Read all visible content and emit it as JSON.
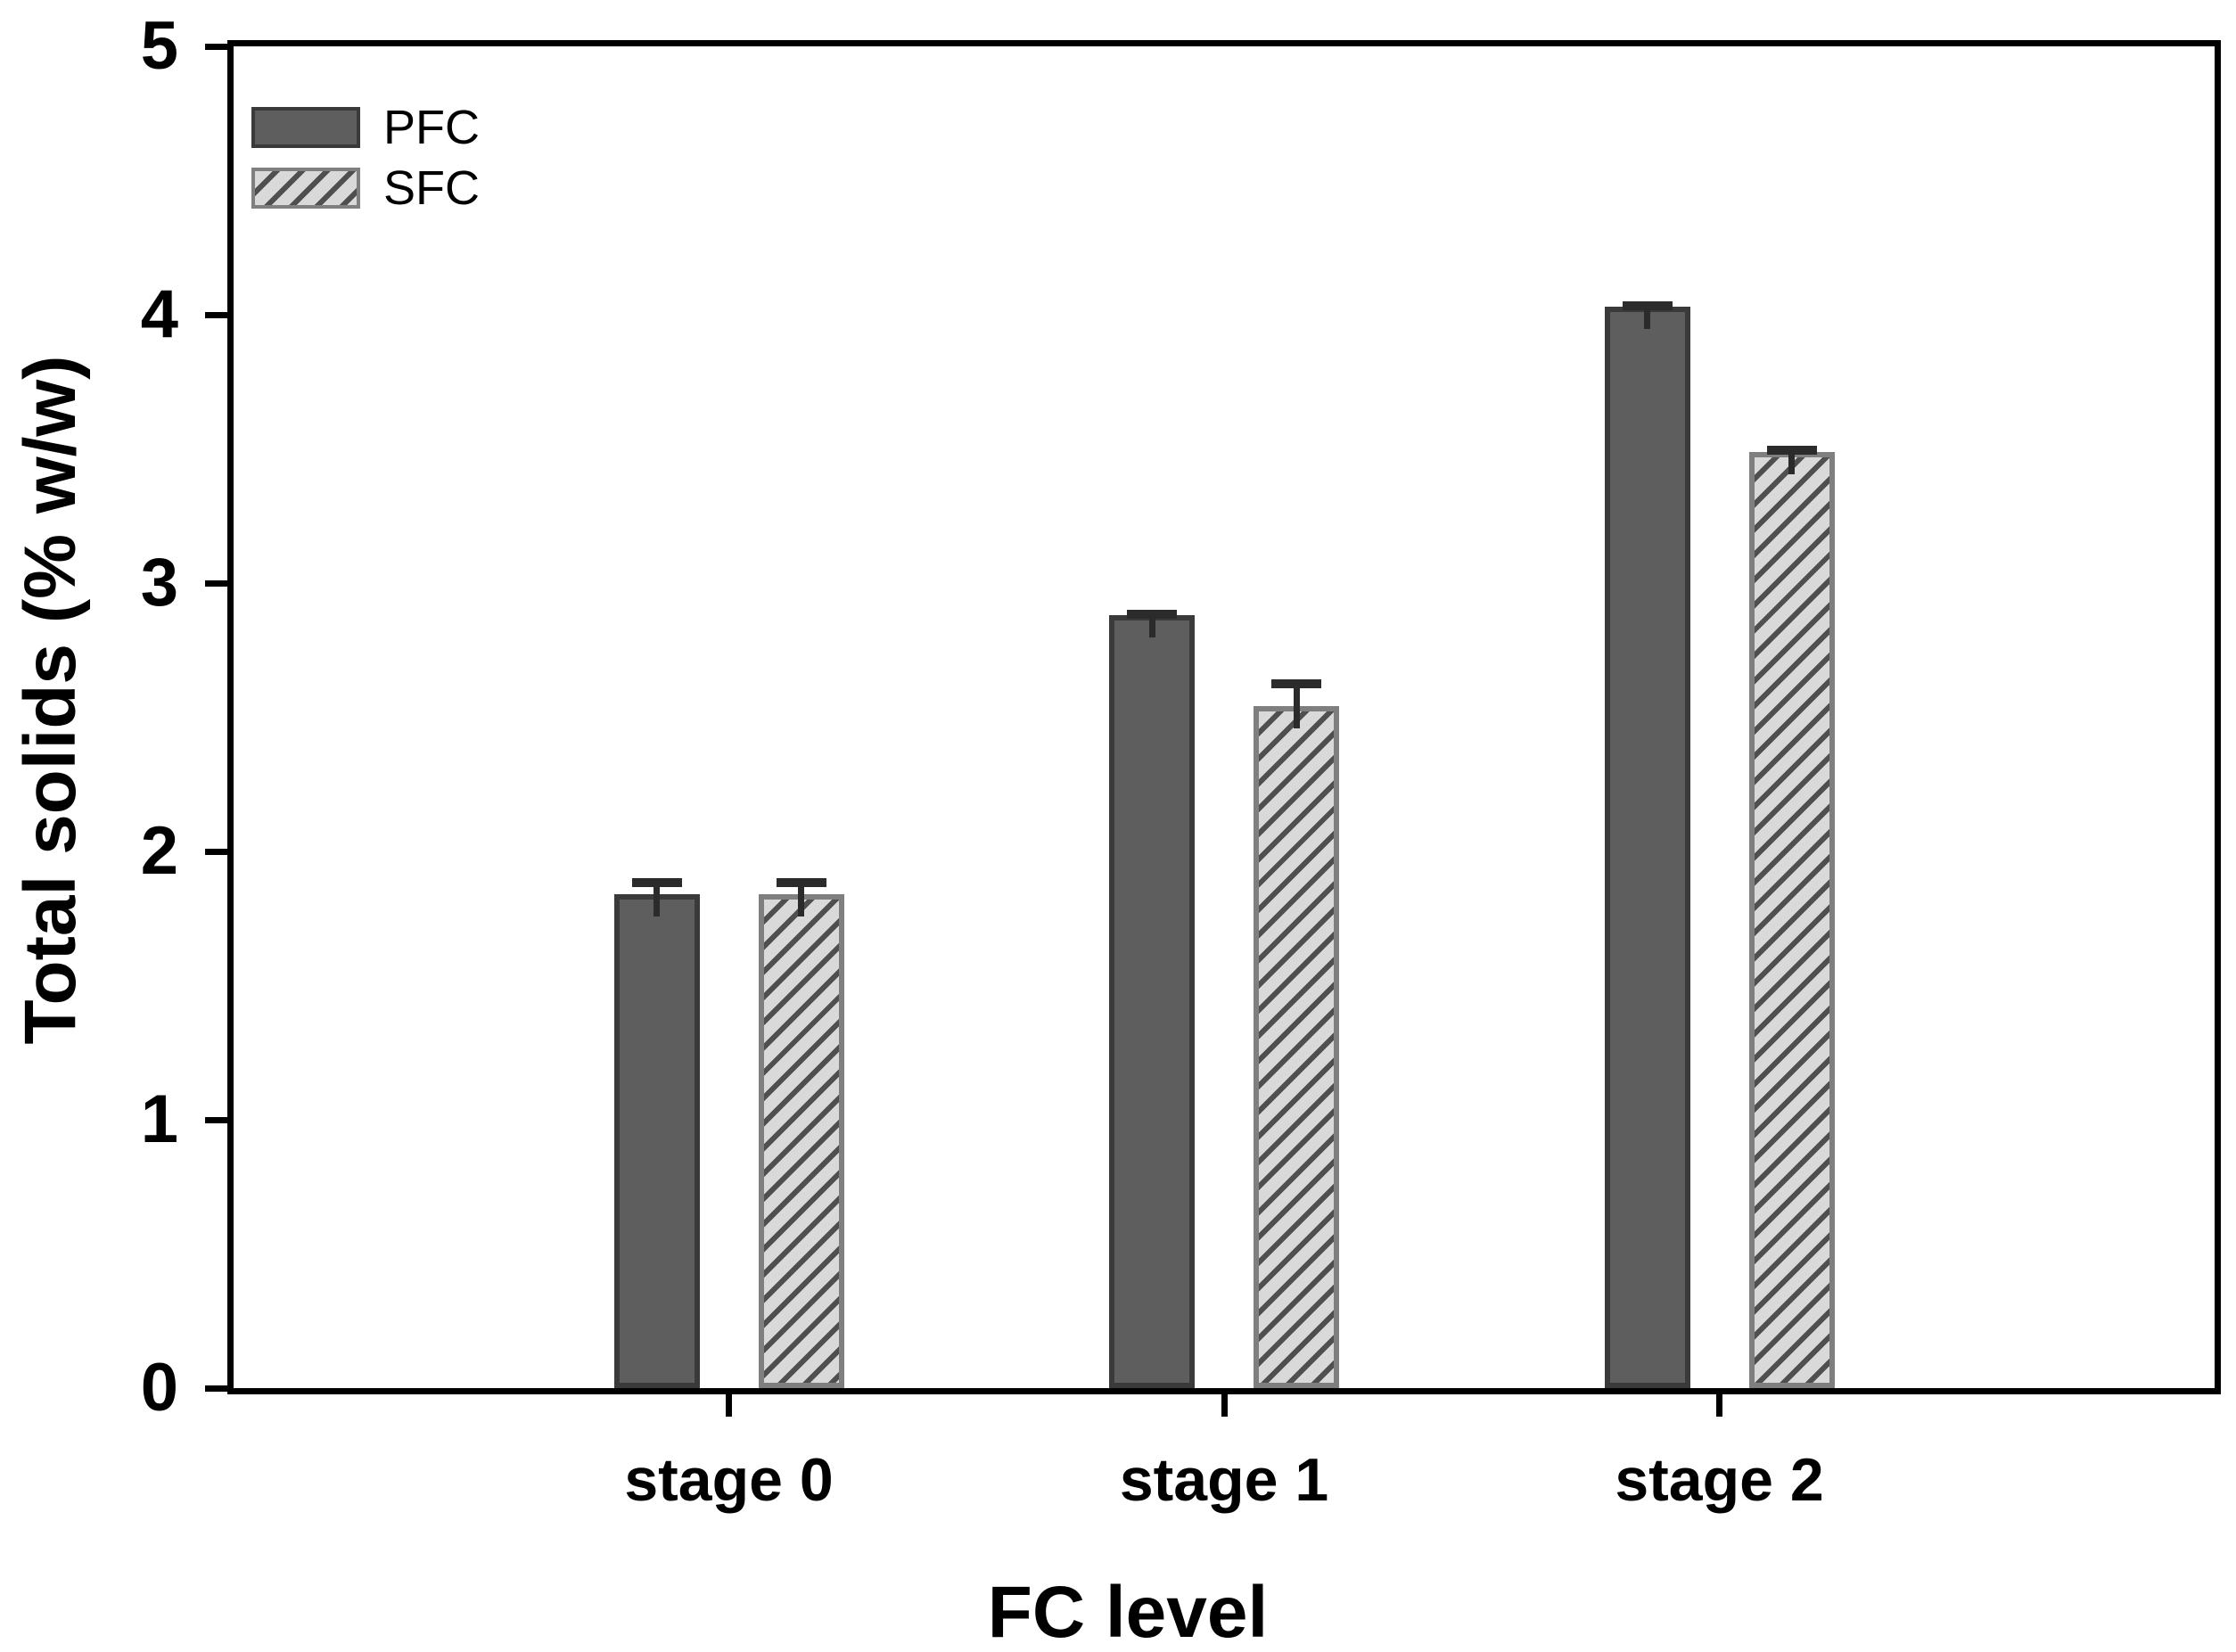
{
  "chart_data": {
    "type": "bar",
    "title": "",
    "xlabel": "FC level",
    "ylabel": "Total solids (% w/w)",
    "categories": [
      "stage 0",
      "stage 1",
      "stage 2"
    ],
    "series": [
      {
        "name": "PFC",
        "values": [
          1.84,
          2.88,
          4.03
        ],
        "errors_plus": [
          0.06,
          0.02,
          0.02
        ],
        "style": "solid",
        "fill": "#5e5e5e",
        "border": "#3a3a3a"
      },
      {
        "name": "SFC",
        "values": [
          1.84,
          2.54,
          3.49
        ],
        "errors_plus": [
          0.06,
          0.1,
          0.02
        ],
        "style": "hatched",
        "fill": "#d9d9d9",
        "border": "#7f7f7f",
        "hatch_color": "#4f4f4f"
      }
    ],
    "ylim": [
      0,
      5
    ],
    "yticks": [
      0,
      1,
      2,
      3,
      4,
      5
    ],
    "grid": false,
    "legend_position": "top-left",
    "frame_color": "#000000",
    "error_bar_color": "#2b2b2b",
    "background": "#ffffff"
  }
}
